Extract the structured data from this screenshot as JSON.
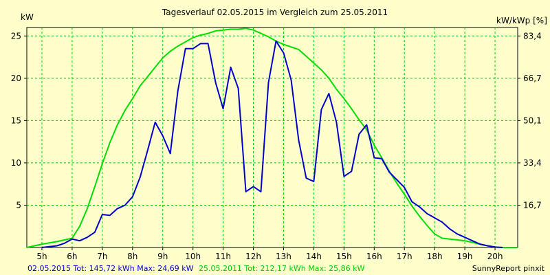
{
  "chart_data": {
    "type": "line",
    "title": "Tagesverlauf 02.05.2015 im Vergleich zum 25.05.2011",
    "ylabel": "kW",
    "y2label": "kW/kWp [%]",
    "xlim": [
      4.5,
      20.75
    ],
    "ylim": [
      0,
      26
    ],
    "x_ticks": [
      5,
      6,
      7,
      8,
      9,
      10,
      11,
      12,
      13,
      14,
      15,
      16,
      17,
      18,
      19,
      20
    ],
    "x_tick_labels": [
      "5h",
      "6h",
      "7h",
      "8h",
      "9h",
      "10h",
      "11h",
      "12h",
      "13h",
      "14h",
      "15h",
      "16h",
      "17h",
      "18h",
      "19h",
      "20h"
    ],
    "y_ticks": [
      5,
      10,
      15,
      20,
      25
    ],
    "y_tick_labels": [
      "5",
      "10",
      "15",
      "20",
      "25"
    ],
    "y2_tick_values": [
      5,
      10,
      15,
      20,
      25
    ],
    "y2_tick_labels": [
      "16,7",
      "33,4",
      "50,1",
      "66,7",
      "83,4"
    ],
    "grid": true,
    "colors": {
      "background": "#ffffcc",
      "grid": "#00cc00",
      "axis": "#000000"
    },
    "series": [
      {
        "name": "02.05.2015",
        "color": "#0000cc",
        "points": [
          [
            5.0,
            0.0
          ],
          [
            5.5,
            0.2
          ],
          [
            5.75,
            0.5
          ],
          [
            6.0,
            1.0
          ],
          [
            6.25,
            0.8
          ],
          [
            6.5,
            1.2
          ],
          [
            6.75,
            1.8
          ],
          [
            7.0,
            3.9
          ],
          [
            7.25,
            3.8
          ],
          [
            7.5,
            4.6
          ],
          [
            7.75,
            5.0
          ],
          [
            8.0,
            6.0
          ],
          [
            8.25,
            8.3
          ],
          [
            8.5,
            11.5
          ],
          [
            8.75,
            14.8
          ],
          [
            9.0,
            13.2
          ],
          [
            9.25,
            11.1
          ],
          [
            9.5,
            18.5
          ],
          [
            9.75,
            23.5
          ],
          [
            10.0,
            23.5
          ],
          [
            10.25,
            24.1
          ],
          [
            10.5,
            24.1
          ],
          [
            10.75,
            19.5
          ],
          [
            11.0,
            16.4
          ],
          [
            11.25,
            21.3
          ],
          [
            11.5,
            18.8
          ],
          [
            11.75,
            6.6
          ],
          [
            12.0,
            7.2
          ],
          [
            12.25,
            6.6
          ],
          [
            12.5,
            19.5
          ],
          [
            12.75,
            24.4
          ],
          [
            13.0,
            23.0
          ],
          [
            13.25,
            19.8
          ],
          [
            13.5,
            12.7
          ],
          [
            13.75,
            8.2
          ],
          [
            14.0,
            7.8
          ],
          [
            14.25,
            16.3
          ],
          [
            14.5,
            18.2
          ],
          [
            14.75,
            14.8
          ],
          [
            15.0,
            8.4
          ],
          [
            15.25,
            9.0
          ],
          [
            15.5,
            13.4
          ],
          [
            15.75,
            14.5
          ],
          [
            16.0,
            10.6
          ],
          [
            16.25,
            10.5
          ],
          [
            16.5,
            8.9
          ],
          [
            16.75,
            8.0
          ],
          [
            17.0,
            7.1
          ],
          [
            17.25,
            5.4
          ],
          [
            17.5,
            4.8
          ],
          [
            17.75,
            4.0
          ],
          [
            18.0,
            3.5
          ],
          [
            18.25,
            3.0
          ],
          [
            18.5,
            2.2
          ],
          [
            18.75,
            1.6
          ],
          [
            19.0,
            1.2
          ],
          [
            19.25,
            0.8
          ],
          [
            19.5,
            0.4
          ],
          [
            19.75,
            0.2
          ],
          [
            20.0,
            0.05
          ],
          [
            20.25,
            0.0
          ]
        ]
      },
      {
        "name": "25.05.2011",
        "color": "#00dd00",
        "points": [
          [
            4.5,
            0.0
          ],
          [
            5.0,
            0.4
          ],
          [
            5.5,
            0.7
          ],
          [
            6.0,
            1.1
          ],
          [
            6.25,
            2.5
          ],
          [
            6.5,
            4.6
          ],
          [
            6.75,
            7.2
          ],
          [
            7.0,
            9.9
          ],
          [
            7.25,
            12.4
          ],
          [
            7.5,
            14.5
          ],
          [
            7.75,
            16.2
          ],
          [
            8.0,
            17.6
          ],
          [
            8.25,
            19.1
          ],
          [
            8.5,
            20.2
          ],
          [
            8.75,
            21.3
          ],
          [
            9.0,
            22.4
          ],
          [
            9.25,
            23.2
          ],
          [
            9.5,
            23.8
          ],
          [
            9.75,
            24.3
          ],
          [
            10.0,
            24.8
          ],
          [
            10.25,
            25.1
          ],
          [
            10.5,
            25.3
          ],
          [
            10.75,
            25.6
          ],
          [
            11.0,
            25.7
          ],
          [
            11.25,
            25.8
          ],
          [
            11.5,
            25.8
          ],
          [
            11.75,
            25.9
          ],
          [
            12.0,
            25.7
          ],
          [
            12.25,
            25.3
          ],
          [
            12.5,
            24.9
          ],
          [
            12.75,
            24.4
          ],
          [
            13.0,
            24.0
          ],
          [
            13.25,
            23.7
          ],
          [
            13.5,
            23.4
          ],
          [
            13.75,
            22.6
          ],
          [
            14.0,
            21.8
          ],
          [
            14.25,
            21.0
          ],
          [
            14.5,
            20.0
          ],
          [
            14.75,
            18.7
          ],
          [
            15.0,
            17.6
          ],
          [
            15.25,
            16.4
          ],
          [
            15.5,
            15.1
          ],
          [
            15.75,
            13.9
          ],
          [
            16.0,
            12.1
          ],
          [
            16.25,
            10.6
          ],
          [
            16.5,
            9.0
          ],
          [
            16.75,
            7.6
          ],
          [
            17.0,
            6.3
          ],
          [
            17.25,
            4.9
          ],
          [
            17.5,
            3.7
          ],
          [
            17.75,
            2.6
          ],
          [
            18.0,
            1.6
          ],
          [
            18.25,
            1.1
          ],
          [
            18.5,
            1.0
          ],
          [
            18.75,
            0.9
          ],
          [
            19.0,
            0.8
          ],
          [
            19.25,
            0.6
          ],
          [
            19.5,
            0.4
          ],
          [
            19.75,
            0.2
          ],
          [
            20.0,
            0.05
          ],
          [
            20.25,
            0.0
          ],
          [
            20.75,
            0.0
          ]
        ]
      }
    ],
    "footer": {
      "blue_text": "02.05.2015 Tot: 145,72 kWh Max: 24,69 kW",
      "green_text": "25.05.2011 Tot: 212,17 kWh Max: 25,86 kW",
      "credit": "SunnyReport pinxit"
    }
  }
}
